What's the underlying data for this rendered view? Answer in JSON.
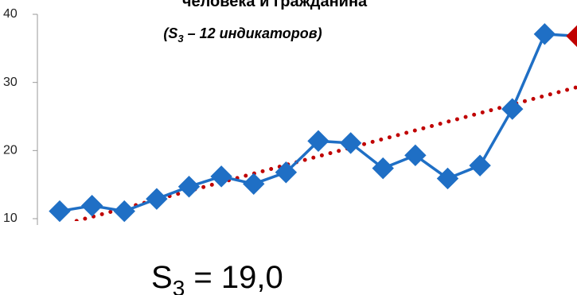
{
  "chart_data": {
    "type": "line",
    "title": "человека и гражданина",
    "subtitle": {
      "parts": [
        "(S",
        "3",
        " – 12 индикаторов)"
      ]
    },
    "annotation": {
      "parts": [
        "S",
        "3",
        " = 19,0"
      ]
    },
    "categories": [
      null,
      null,
      null,
      null,
      null,
      null,
      null,
      null,
      null,
      null,
      null,
      null,
      null,
      null,
      null,
      null,
      null
    ],
    "series": [
      {
        "color": "#1f6fc5",
        "values": [
          11.1,
          11.9,
          11.1,
          12.9,
          14.7,
          16.2,
          15.1,
          16.8,
          21.4,
          21.1,
          17.4,
          19.3,
          15.9,
          17.8,
          26.1,
          37.1,
          36.8
        ]
      }
    ],
    "highlight_last_color": "#c00000",
    "trendline": {
      "color": "#c00000",
      "values": [
        9.0,
        29.3
      ]
    },
    "ylim": [
      10,
      40
    ],
    "yticks": [
      10,
      20,
      30,
      40
    ],
    "grid": false
  }
}
